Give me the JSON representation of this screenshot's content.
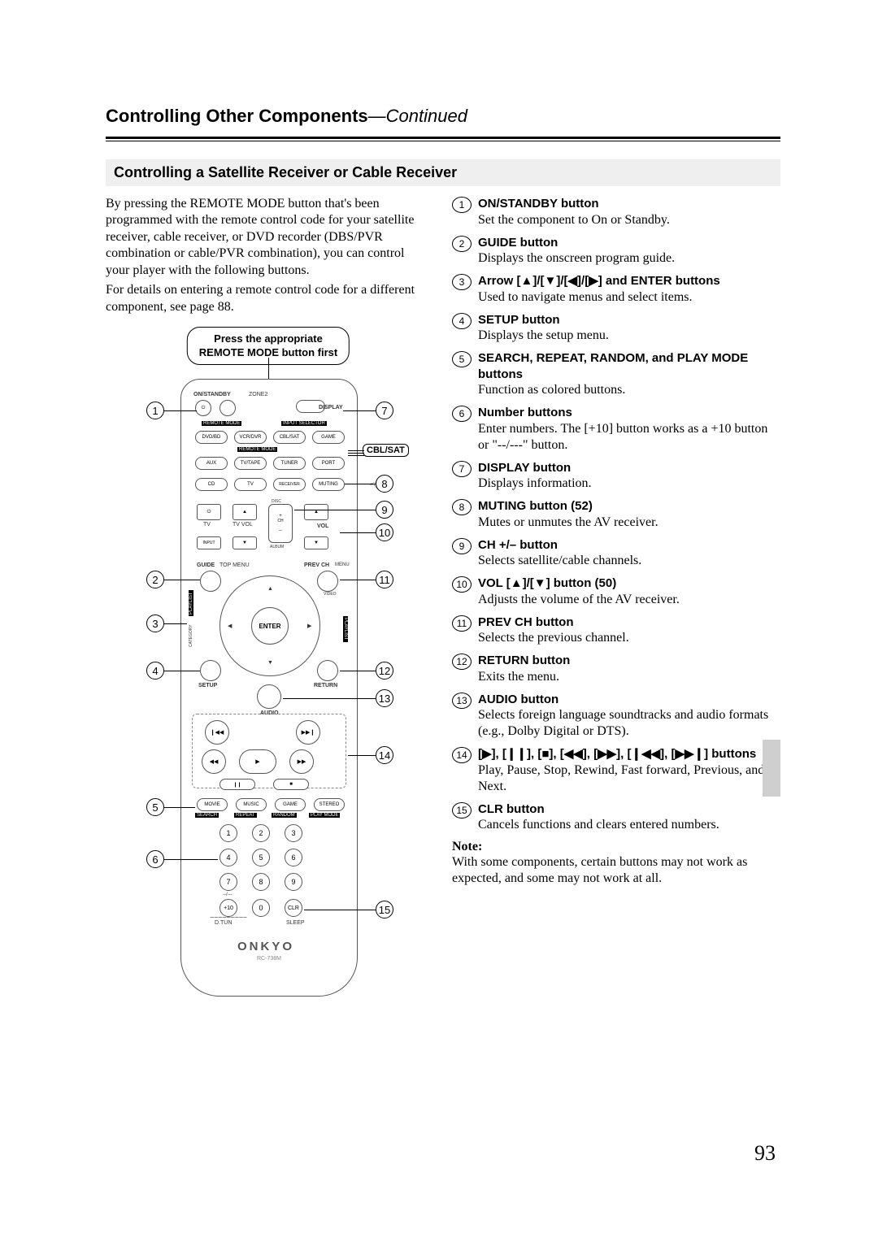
{
  "page_number": "93",
  "header": {
    "title": "Controlling Other Components",
    "continued": "—Continued"
  },
  "section_title": "Controlling a Satellite Receiver or Cable Receiver",
  "intro_paragraph_1": "By pressing the REMOTE MODE button that's been programmed with the remote control code for your satellite receiver, cable receiver, or DVD recorder (DBS/PVR combination or cable/PVR combination), you can control your player with the following buttons.",
  "intro_paragraph_2": "For details on entering a remote control code for a different component, see page 88.",
  "callout_text_l1": "Press the appropriate",
  "callout_text_l2": "REMOTE MODE button first",
  "cblsat_label": "CBL/SAT",
  "remote": {
    "brand": "ONKYO",
    "model": "RC-738M",
    "labels": {
      "onstandby": "ON/STANDBY",
      "zone2": "ZONE2",
      "display": "DISPLAY",
      "remote_mode": "REMOTE MODE",
      "input_sel": "INPUT SELECTOR",
      "dvdbd": "DVD/BD",
      "vcrdvr": "VCR/DVR",
      "cblsat": "CBL/SAT",
      "game": "GAME",
      "aux": "AUX",
      "tvtape": "TV/TAPE",
      "tuner": "TUNER",
      "port": "PORT",
      "cd": "CD",
      "tv": "TV",
      "receiver": "RECEIVER",
      "muting": "MUTING",
      "tv_pwr": "⏻",
      "tv_lbl": "TV",
      "tvvol": "TV\nVOL",
      "ch": "CH",
      "disc": "DISC",
      "album": "ALBUM",
      "vol": "VOL",
      "input": "INPUT",
      "guide": "GUIDE",
      "topmenu": "TOP MENU",
      "prevch": "PREV CH",
      "menu": "MENU",
      "playlist": "PLAYLIST",
      "category": "CATEGORY",
      "enter": "ENTER",
      "video": "VIDEO",
      "setup": "SETUP",
      "audio": "AUDIO",
      "return": "RETURN",
      "movie": "MOVIE",
      "music": "MUSIC",
      "game2": "GAME",
      "stereo": "STEREO",
      "search": "SEARCH",
      "repeat": "REPEAT",
      "random": "RANDOM",
      "playmode": "PLAY MODE",
      "plus10": "+10",
      "clr": "CLR",
      "dtun": "D.TUN",
      "sleep": "SLEEP"
    }
  },
  "items": [
    {
      "num": "1",
      "title": "ON/STANDBY button",
      "desc": "Set the component to On or Standby."
    },
    {
      "num": "2",
      "title": "GUIDE button",
      "desc": "Displays the onscreen program guide."
    },
    {
      "num": "3",
      "title": "Arrow [▲]/[▼]/[◀]/[▶] and ENTER buttons",
      "desc": "Used to navigate menus and select items."
    },
    {
      "num": "4",
      "title": "SETUP button",
      "desc": "Displays the setup menu."
    },
    {
      "num": "5",
      "title": "SEARCH, REPEAT, RANDOM, and PLAY MODE buttons",
      "desc": "Function as colored buttons."
    },
    {
      "num": "6",
      "title": "Number buttons",
      "desc": "Enter numbers. The [+10] button works as a +10 button or \"--/---\" button."
    },
    {
      "num": "7",
      "title": "DISPLAY button",
      "desc": "Displays information."
    },
    {
      "num": "8",
      "title": "MUTING button (52)",
      "desc": "Mutes or unmutes the AV receiver."
    },
    {
      "num": "9",
      "title": "CH +/– button",
      "desc": "Selects satellite/cable channels."
    },
    {
      "num": "10",
      "title": "VOL [▲]/[▼] button (50)",
      "desc": "Adjusts the volume of the AV receiver."
    },
    {
      "num": "11",
      "title": "PREV CH button",
      "desc": "Selects the previous channel."
    },
    {
      "num": "12",
      "title": "RETURN button",
      "desc": "Exits the menu."
    },
    {
      "num": "13",
      "title": "AUDIO button",
      "desc": "Selects foreign language soundtracks and audio formats (e.g., Dolby Digital or DTS)."
    },
    {
      "num": "14",
      "title": "[▶], [❙❙], [■], [◀◀], [▶▶], [❙◀◀], [▶▶❙] buttons",
      "desc": "Play, Pause, Stop, Rewind, Fast forward, Previous, and Next."
    },
    {
      "num": "15",
      "title": "CLR button",
      "desc": "Cancels functions and clears entered numbers."
    }
  ],
  "note_label": "Note:",
  "note_body": "With some components, certain buttons may not work as expected, and some may not work at all."
}
